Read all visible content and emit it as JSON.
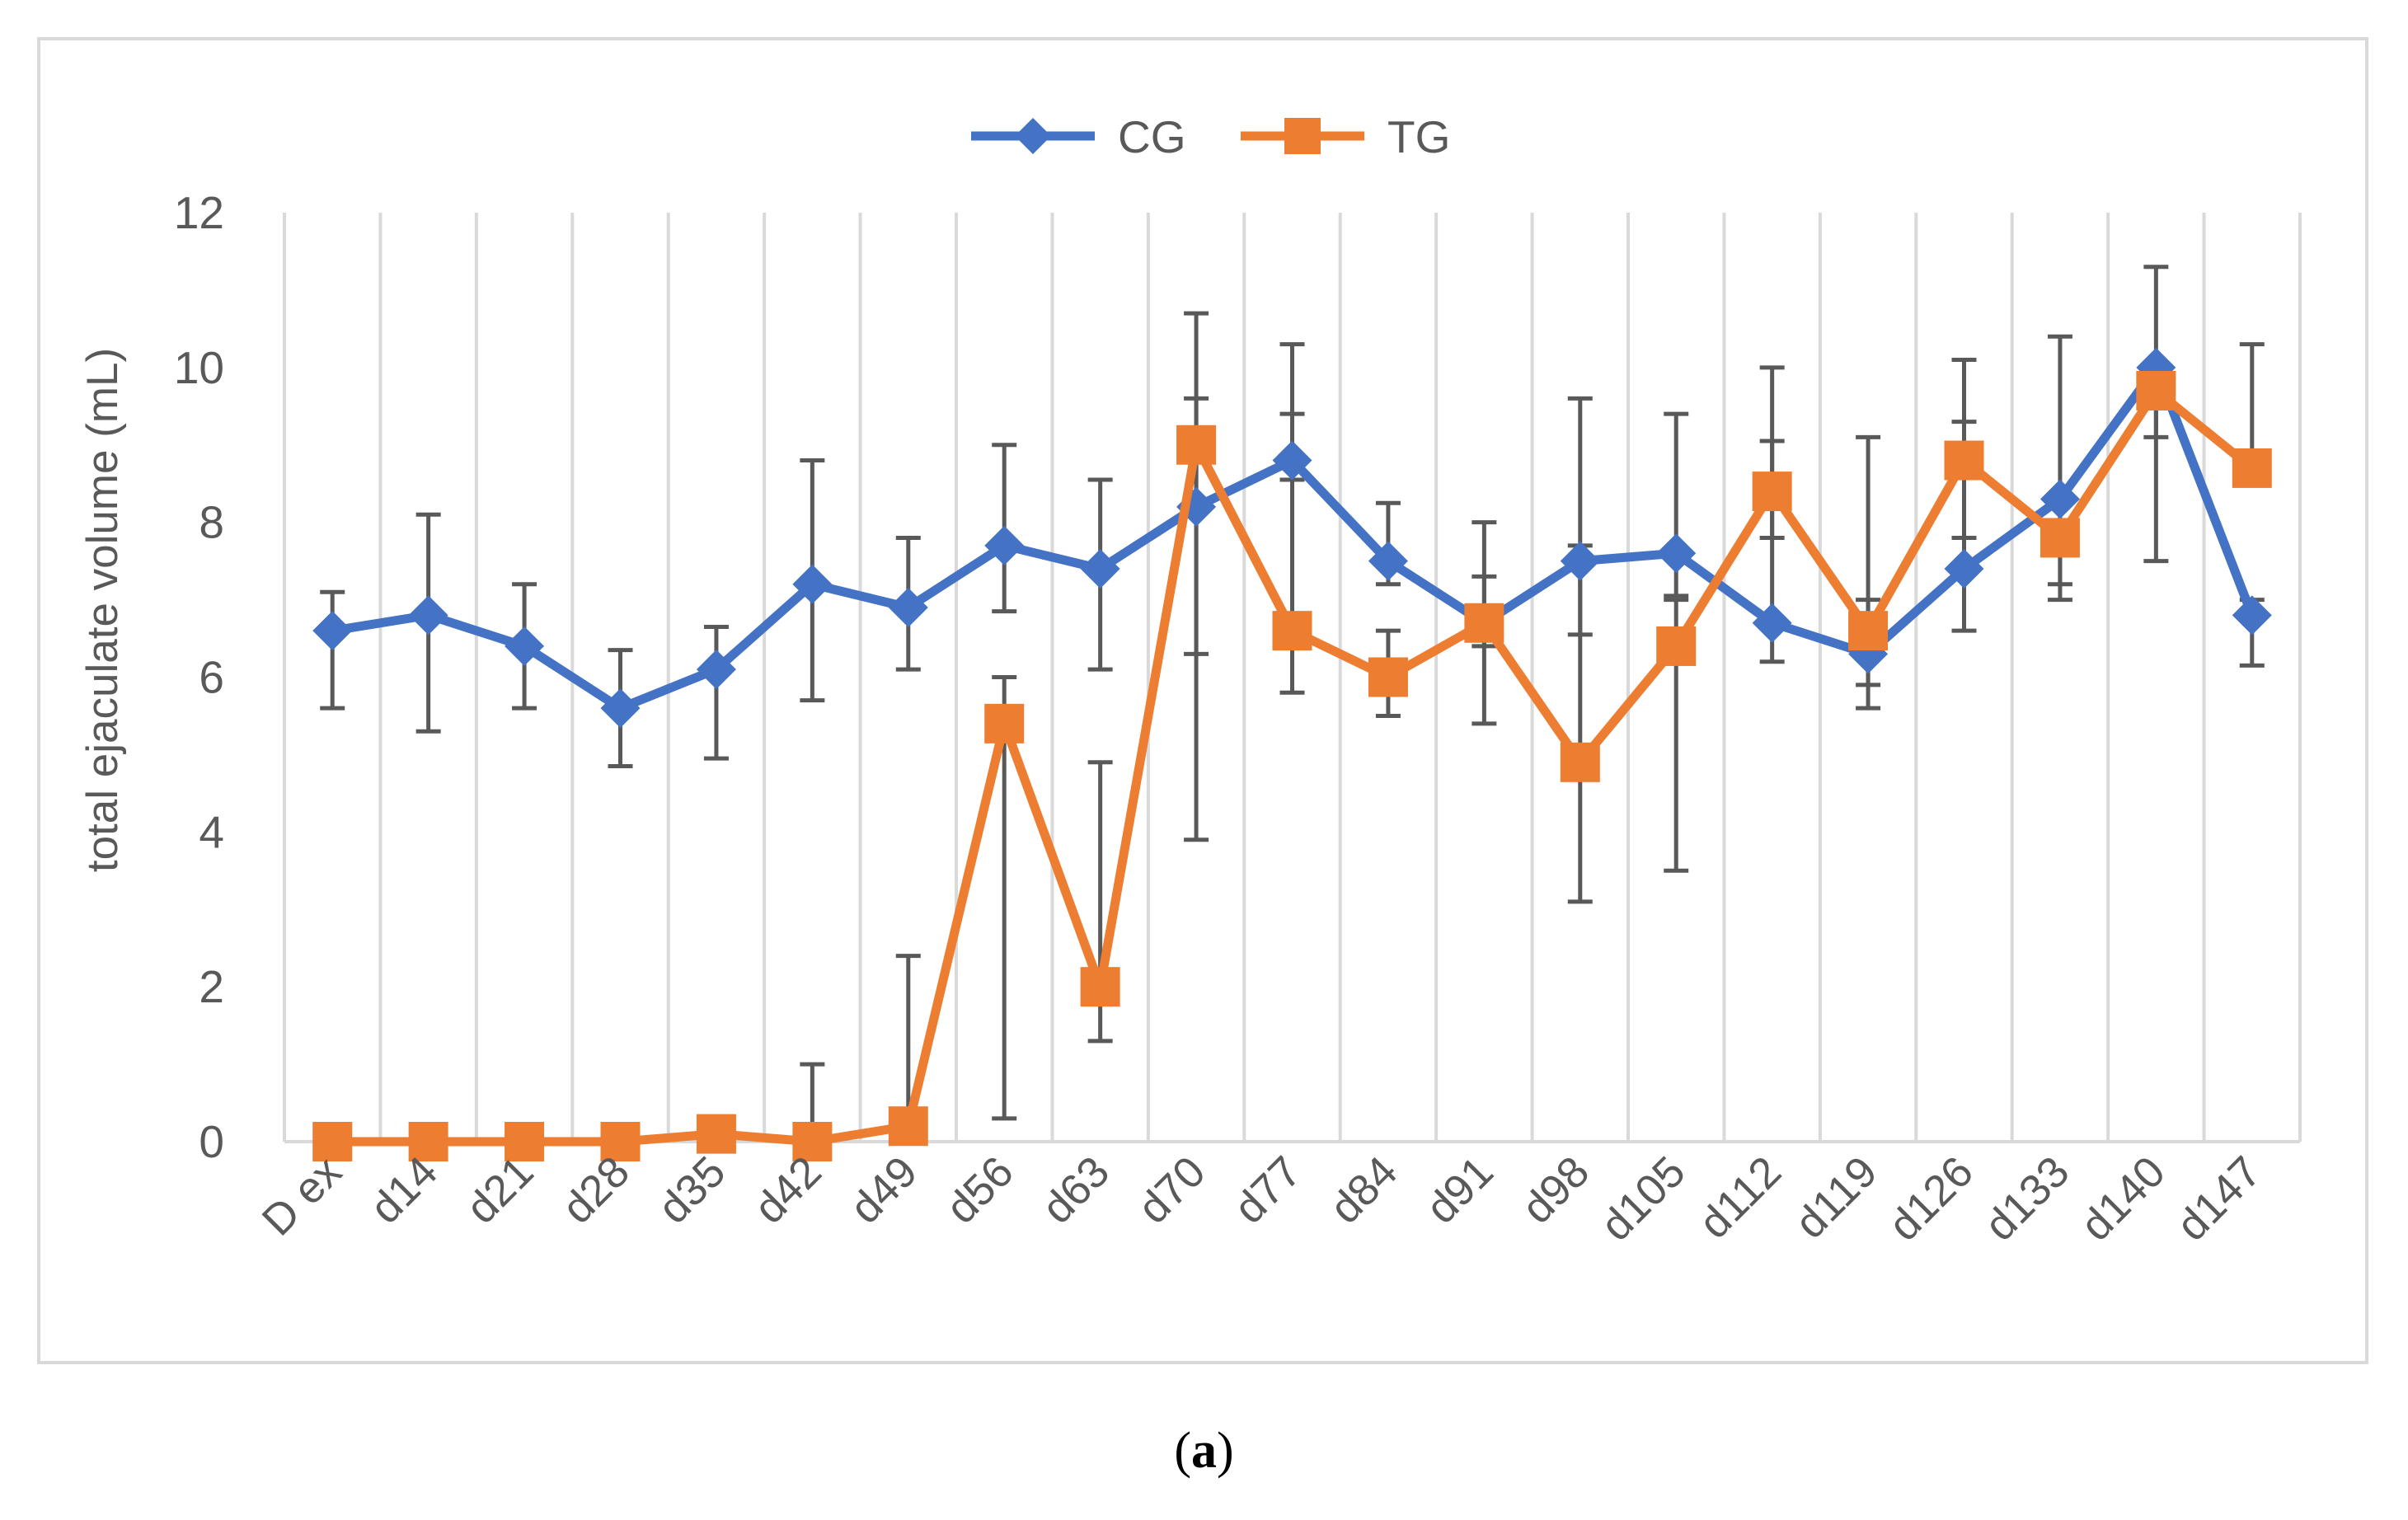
{
  "chart_data": {
    "type": "line",
    "title": "",
    "xlabel": "",
    "ylabel": "total ejaculate volume (mL)",
    "ylim": [
      0,
      12
    ],
    "yticks": [
      0,
      2,
      4,
      6,
      8,
      10,
      12
    ],
    "grid": "vertical",
    "legend_position": "top-center",
    "categories": [
      "D ex",
      "d14",
      "d21",
      "d28",
      "d35",
      "d42",
      "d49",
      "d56",
      "d63",
      "d70",
      "d77",
      "d84",
      "d91",
      "d98",
      "d105",
      "d112",
      "d119",
      "d126",
      "d133",
      "d140",
      "d147"
    ],
    "series": [
      {
        "name": "CG",
        "color": "#4472c4",
        "marker": "diamond",
        "values": [
          6.6,
          6.8,
          6.4,
          5.6,
          6.1,
          7.2,
          6.9,
          7.7,
          7.4,
          8.2,
          8.8,
          7.5,
          6.7,
          7.5,
          7.6,
          6.7,
          6.3,
          7.4,
          8.3,
          10.0,
          6.8
        ],
        "err_low": [
          5.6,
          5.3,
          5.6,
          4.85,
          4.95,
          5.7,
          6.1,
          6.85,
          6.1,
          6.3,
          8.55,
          7.2,
          5.4,
          6.55,
          7.05,
          6.2,
          5.6,
          6.6,
          7.0,
          9.1,
          6.15
        ],
        "err_high": [
          7.1,
          8.1,
          7.2,
          6.35,
          6.65,
          8.8,
          7.8,
          9.0,
          8.55,
          9.6,
          9.4,
          8.25,
          8.0,
          9.6,
          9.4,
          9.05,
          7.0,
          9.3,
          10.4,
          11.3,
          7.0
        ]
      },
      {
        "name": "TG",
        "color": "#ed7d31",
        "marker": "square",
        "values": [
          0.0,
          0.0,
          0.0,
          0.0,
          0.1,
          0.0,
          0.2,
          5.4,
          2.0,
          9.0,
          6.6,
          6.0,
          6.7,
          4.9,
          6.4,
          8.4,
          6.6,
          8.8,
          7.8,
          9.7,
          8.7
        ],
        "err_low": [
          0.0,
          0.0,
          0.0,
          0.0,
          0.0,
          0.0,
          0.0,
          0.3,
          1.3,
          3.9,
          5.8,
          5.5,
          6.4,
          3.1,
          3.5,
          7.8,
          5.9,
          7.8,
          7.2,
          7.5,
          8.7
        ],
        "err_high": [
          0.0,
          0.0,
          0.0,
          0.0,
          0.0,
          1.0,
          2.4,
          6.0,
          4.9,
          10.7,
          10.3,
          6.6,
          7.3,
          7.7,
          7.0,
          10.0,
          9.1,
          10.1,
          8.3,
          9.8,
          10.3
        ]
      }
    ]
  },
  "caption": {
    "open": "(",
    "letter": "a",
    "close": ")"
  }
}
